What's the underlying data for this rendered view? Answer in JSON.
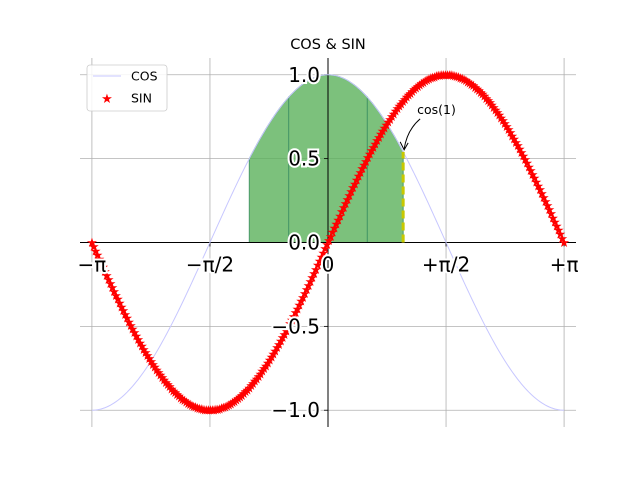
{
  "chart_data": {
    "type": "line",
    "title": "COS & SIN",
    "xlim": [
      -3.3,
      3.3
    ],
    "ylim": [
      -1.1,
      1.1
    ],
    "grid": true,
    "x_ticks": [
      {
        "value": -3.14159,
        "label": "−π"
      },
      {
        "value": -1.5708,
        "label": "−π/2"
      },
      {
        "value": 0,
        "label": "0"
      },
      {
        "value": 1.5708,
        "label": "+π/2"
      },
      {
        "value": 3.14159,
        "label": "+π"
      }
    ],
    "y_ticks": [
      {
        "value": -1.0,
        "label": "−1.0"
      },
      {
        "value": -0.5,
        "label": "−0.5"
      },
      {
        "value": 0.0,
        "label": "0.0"
      },
      {
        "value": 0.5,
        "label": "0.5"
      },
      {
        "value": 1.0,
        "label": "1.0"
      }
    ],
    "series": [
      {
        "name": "COS",
        "function": "cos",
        "x_range": [
          -3.14159,
          3.14159
        ],
        "points": 256,
        "color": "#c7c7ff",
        "style": "line"
      },
      {
        "name": "SIN",
        "function": "sin",
        "x_range": [
          -3.14159,
          3.14159
        ],
        "points": 256,
        "color": "#ff0000",
        "style": "stars"
      }
    ],
    "fills": [
      {
        "x_range": [
          -1.0472,
          -0.5236
        ],
        "color": "#57b057"
      },
      {
        "x_range": [
          -0.5236,
          0.5236
        ],
        "color": "#57b057",
        "mode": "under_unit"
      },
      {
        "x_range": [
          0.5236,
          1.0
        ],
        "color": "#57b057"
      }
    ],
    "marker_line": {
      "x": 1.0,
      "y_range": [
        0,
        0.5403
      ],
      "color": "#c8c800"
    },
    "annotation": {
      "text": "cos(1)",
      "x": 1.0,
      "y": 0.5403
    },
    "legend": {
      "position": "top-left",
      "entries": [
        "COS",
        "SIN"
      ]
    }
  }
}
